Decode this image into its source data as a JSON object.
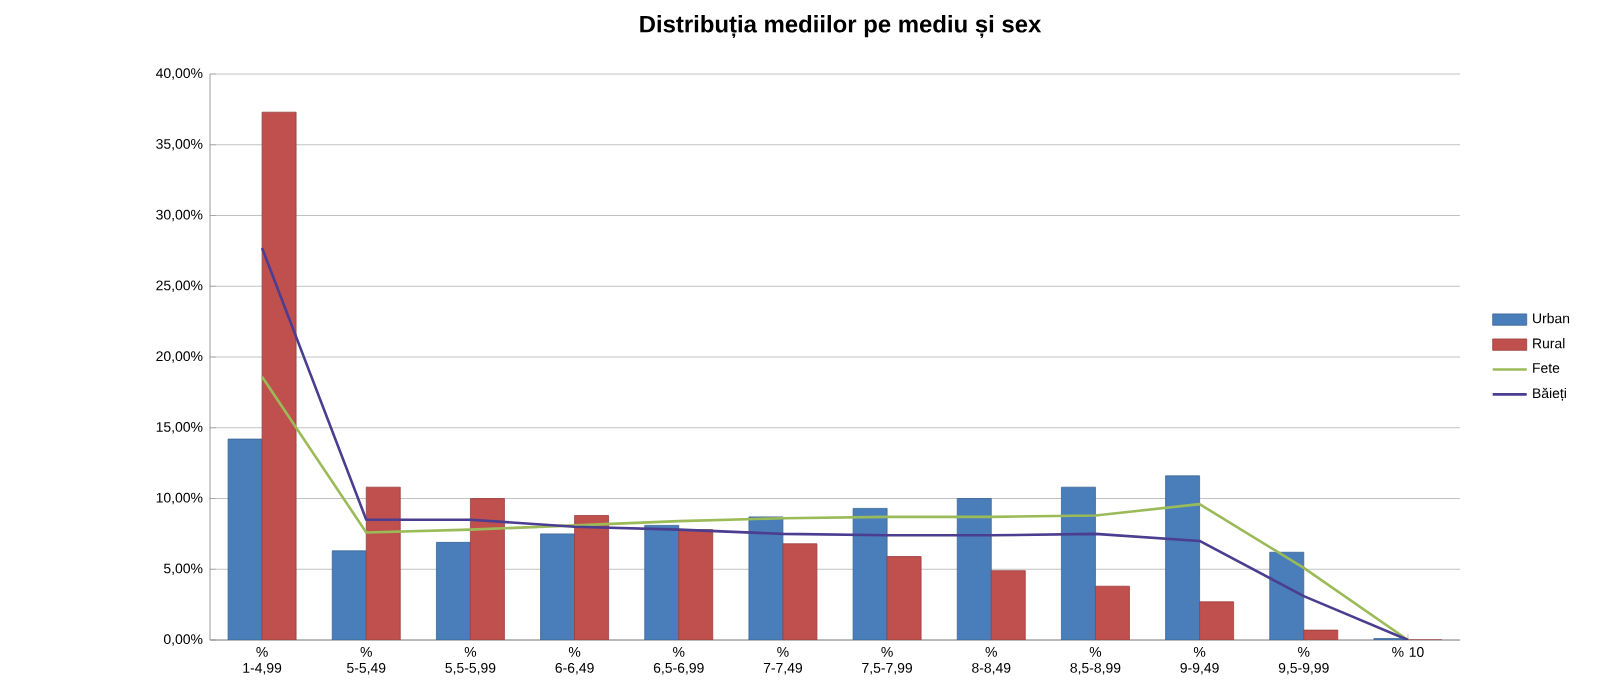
{
  "chart_data": {
    "type": "bar",
    "title": "Distribuția mediilor pe mediu și sex",
    "categories": [
      "% 1-4,99",
      "% 5-5,49",
      "% 5,5-5,99",
      "% 6-6,49",
      "% 6,5-6,99",
      "% 7-7,49",
      "% 7,5-7,99",
      "% 8-8,49",
      "% 8,5-8,99",
      "% 9-9,49",
      "% 9,5-9,99",
      "% 10"
    ],
    "series": [
      {
        "name": "Urban",
        "color": "#4a7ebb",
        "values": [
          14.2,
          6.3,
          6.9,
          7.5,
          8.1,
          8.7,
          9.3,
          10.0,
          10.8,
          11.6,
          6.2,
          0.1
        ]
      },
      {
        "name": "Rural",
        "color": "#c0504d",
        "values": [
          37.3,
          10.8,
          10.0,
          8.8,
          7.8,
          6.8,
          5.9,
          4.9,
          3.8,
          2.7,
          0.7,
          0
        ]
      },
      {
        "name": "Fete",
        "type": "line",
        "color": "#9bbb59",
        "values": [
          18.6,
          7.6,
          7.8,
          8.1,
          8.4,
          8.6,
          8.7,
          8.7,
          8.8,
          9.6,
          5.1,
          0
        ]
      },
      {
        "name": "Băieți",
        "type": "line",
        "color": "#4b3d8f",
        "values": [
          27.7,
          8.5,
          8.5,
          8.0,
          7.8,
          7.5,
          7.4,
          7.4,
          7.5,
          7.0,
          3.1,
          0
        ]
      }
    ],
    "ylim": [
      0,
      40
    ],
    "yticks": [
      {
        "value": 0,
        "label": "0,00%"
      },
      {
        "value": 5,
        "label": "5,00%"
      },
      {
        "value": 10,
        "label": "10,00%"
      },
      {
        "value": 15,
        "label": "15,00%"
      },
      {
        "value": 20,
        "label": "20,00%"
      },
      {
        "value": 25,
        "label": "25,00%"
      },
      {
        "value": 30,
        "label": "30,00%"
      },
      {
        "value": 35,
        "label": "35,00%"
      },
      {
        "value": 40,
        "label": "40,00%"
      }
    ],
    "grid": "y",
    "legend": "right",
    "marker": "none"
  }
}
